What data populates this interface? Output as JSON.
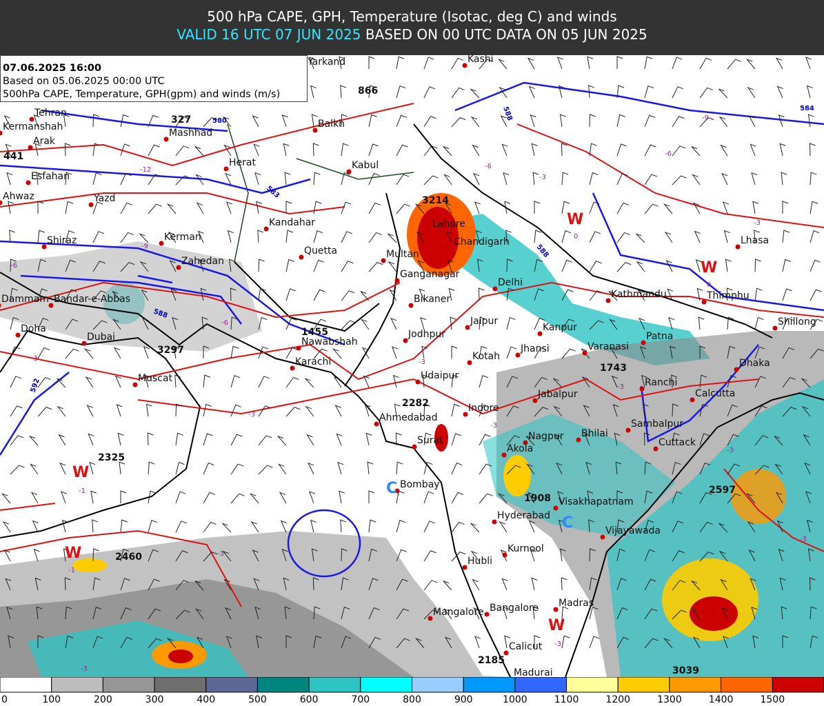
{
  "header": {
    "title": "500 hPa CAPE, GPH, Temperature (Isotac, deg C) and winds",
    "valid": "VALID 16 UTC 07 JUN 2025",
    "based": "BASED ON 00 UTC DATA ON 05 JUN 2025"
  },
  "info": {
    "lines": [
      "07.06.2025 16:00",
      "Based on 05.06.2025 00:00 UTC",
      "500hPa CAPE, Temperature, GPH(gpm) and winds (m/s)"
    ]
  },
  "map": {
    "cities": [
      "Yarkand",
      "Kashi",
      "Tehran",
      "Kermanshah",
      "Arak",
      "Esfahan",
      "Ahwaz",
      "Yazd",
      "Mashhad",
      "Herat",
      "Balkh",
      "Kabul",
      "Kandahar",
      "Kerman",
      "Shiraz",
      "Zahedan",
      "Quetta",
      "Multan",
      "Lahore",
      "Chandigarh",
      "Ganganagar",
      "Delhi",
      "Bikaner",
      "Bandar-e-Abbas",
      "Dammam",
      "Doha",
      "Dubai",
      "Muscat",
      "Jaipur",
      "Jodhpur",
      "Nawabshah",
      "Karachi",
      "Kotah",
      "Udaipur",
      "Kanpur",
      "Varanasi",
      "Jhansi",
      "Patna",
      "Kathmandu",
      "Thimphu",
      "Lhasa",
      "Shillong",
      "Dhaka",
      "Ranchi",
      "Calcutta",
      "Jabalpur",
      "Indore",
      "Ahmedabad",
      "Surat",
      "Nagpur",
      "Bhilai",
      "Sambalpur",
      "Cuttack",
      "Akola",
      "Bombay",
      "Hyderabad",
      "Visakhapatnam",
      "Vijayawada",
      "Kurnool",
      "Hubli",
      "Mangalore",
      "Bangalore",
      "Madras",
      "Calicut",
      "Madurai"
    ],
    "cape_values": [
      327,
      441,
      866,
      3214,
      1455,
      3297,
      2282,
      2325,
      2460,
      1908,
      1743,
      2597,
      2185,
      3039
    ],
    "centers": [
      "W",
      "W",
      "W",
      "W",
      "W",
      "C",
      "C"
    ],
    "temperature_labels": [
      -12,
      -9,
      -6,
      -6,
      -3,
      -3,
      -3,
      -3,
      -3,
      -3,
      -3,
      -3,
      -3,
      -9,
      -6,
      -6,
      -3,
      -3,
      -1,
      -1,
      0,
      0,
      -3
    ],
    "gph_labels": [
      580,
      584,
      588,
      583,
      588,
      588,
      592
    ]
  },
  "colorbar": {
    "ticks": [
      0,
      100,
      200,
      300,
      400,
      500,
      600,
      700,
      800,
      900,
      1000,
      1100,
      1200,
      1300,
      1400,
      1500
    ],
    "colors": [
      "#ffffff",
      "#bdbdbd",
      "#969696",
      "#6e6e6e",
      "#5d6796",
      "#00857f",
      "#2ec4c4",
      "#00ffff",
      "#99ccff",
      "#0099ff",
      "#3366ff",
      "#ffff99",
      "#ffcc00",
      "#ff9900",
      "#ff6600",
      "#cc0000"
    ]
  }
}
